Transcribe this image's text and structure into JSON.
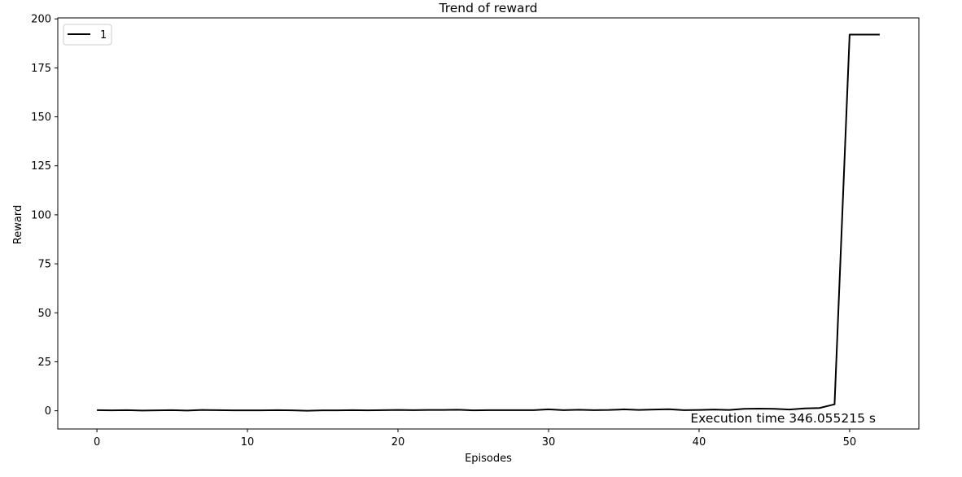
{
  "chart_data": {
    "type": "line",
    "title": "Trend of reward",
    "xlabel": "Episodes",
    "ylabel": "Reward",
    "xlim": [
      -2.6,
      54.6
    ],
    "ylim": [
      -9.3,
      200.5
    ],
    "xticks": [
      0,
      10,
      20,
      30,
      40,
      50
    ],
    "yticks": [
      0,
      25,
      50,
      75,
      100,
      125,
      150,
      175,
      200
    ],
    "grid": false,
    "legend_position": "upper-left",
    "annotation": "Execution time 346.055215 s",
    "series": [
      {
        "name": "1",
        "color": "#000000",
        "x": [
          0,
          1,
          2,
          3,
          4,
          5,
          6,
          7,
          8,
          9,
          10,
          11,
          12,
          13,
          14,
          15,
          16,
          17,
          18,
          19,
          20,
          21,
          22,
          23,
          24,
          25,
          26,
          27,
          28,
          29,
          30,
          31,
          32,
          33,
          34,
          35,
          36,
          37,
          38,
          39,
          40,
          41,
          42,
          43,
          44,
          45,
          46,
          47,
          48,
          49,
          50,
          51,
          52
        ],
        "y": [
          0.3,
          0.2,
          0.3,
          0.1,
          0.2,
          0.3,
          0.1,
          0.4,
          0.3,
          0.2,
          0.2,
          0.2,
          0.3,
          0.2,
          0.0,
          0.2,
          0.2,
          0.3,
          0.2,
          0.3,
          0.4,
          0.3,
          0.4,
          0.4,
          0.5,
          0.2,
          0.3,
          0.3,
          0.3,
          0.3,
          0.7,
          0.3,
          0.5,
          0.3,
          0.4,
          0.7,
          0.4,
          0.6,
          0.8,
          0.3,
          0.4,
          0.6,
          0.4,
          1.0,
          1.1,
          1.0,
          0.6,
          1.2,
          1.4,
          3.3,
          192.0,
          192.0,
          192.0
        ]
      }
    ]
  }
}
